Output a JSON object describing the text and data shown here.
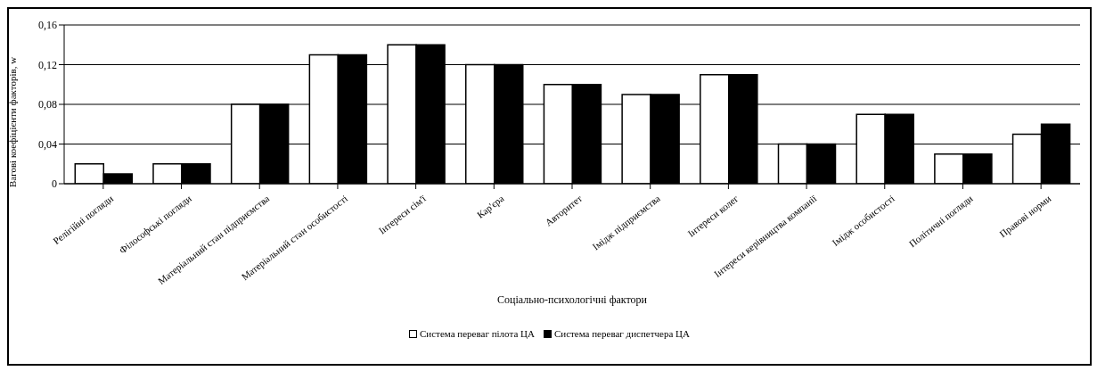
{
  "chart_data": {
    "type": "bar",
    "xlabel": "Соціально-психологічні фактори",
    "ylabel": "Вагові коефіцієнти факторів, w",
    "categories": [
      "Релігійні погляди",
      "Філософські погляди",
      "Матеріальний стан підприємства",
      "Матеріальний стан особистості",
      "Інтереси сім'ї",
      "Кар'єра",
      "Авторитет",
      "Імідж підприємства",
      "Інтереси колег",
      "Інтереси керівництва компанії",
      "Імідж особистості",
      "Політичні погляди",
      "Правові норми"
    ],
    "series": [
      {
        "name": "Система переваг пілота ЦА",
        "color": "#ffffff",
        "values": [
          0.02,
          0.02,
          0.08,
          0.13,
          0.14,
          0.12,
          0.1,
          0.09,
          0.11,
          0.04,
          0.07,
          0.03,
          0.05
        ]
      },
      {
        "name": "Система переваг диспетчера ЦА",
        "color": "#000000",
        "values": [
          0.01,
          0.02,
          0.08,
          0.13,
          0.14,
          0.12,
          0.1,
          0.09,
          0.11,
          0.04,
          0.07,
          0.03,
          0.06
        ]
      }
    ],
    "ylim": [
      0,
      0.16
    ],
    "yticks": [
      0,
      {
        "value": 0.04,
        "label": "0,04"
      },
      {
        "value": 0.08,
        "label": "0,08"
      },
      {
        "value": 0.12,
        "label": "0,12"
      },
      {
        "value": 0.16,
        "label": "0,16"
      }
    ],
    "grid": "y",
    "legend": "bottom"
  }
}
